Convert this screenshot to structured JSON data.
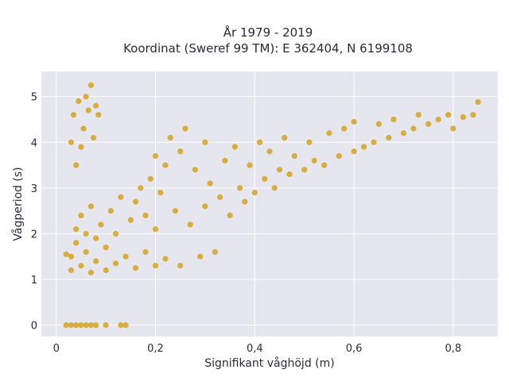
{
  "chart_data": {
    "type": "scatter",
    "title_lines": [
      "År 1979 - 2019",
      "Koordinat (Sweref 99 TM): E 362404, N 6199108"
    ],
    "xlabel": "Signifikant våghöjd (m)",
    "ylabel": "Vågperiod (s)",
    "xlim": [
      -0.03,
      0.89
    ],
    "ylim": [
      -0.25,
      5.55
    ],
    "x_ticks": [
      0,
      0.2,
      0.4,
      0.6,
      0.8
    ],
    "x_tick_labels": [
      "0",
      "0,2",
      "0,4",
      "0,6",
      "0,8"
    ],
    "y_ticks": [
      0,
      1,
      2,
      3,
      4,
      5
    ],
    "y_tick_labels": [
      "0",
      "1",
      "2",
      "3",
      "4",
      "5"
    ],
    "grid": true,
    "colors": {
      "point": "#d4a21f",
      "plot_bg": "#e6e6ef",
      "grid": "#ffffff"
    },
    "points": [
      [
        0.02,
        1.55
      ],
      [
        0.03,
        1.2
      ],
      [
        0.03,
        1.5
      ],
      [
        0.04,
        1.8
      ],
      [
        0.04,
        2.1
      ],
      [
        0.05,
        1.3
      ],
      [
        0.05,
        2.4
      ],
      [
        0.06,
        1.6
      ],
      [
        0.06,
        2.0
      ],
      [
        0.07,
        1.15
      ],
      [
        0.07,
        2.6
      ],
      [
        0.08,
        1.4
      ],
      [
        0.08,
        1.9
      ],
      [
        0.09,
        2.2
      ],
      [
        0.1,
        1.2
      ],
      [
        0.1,
        1.7
      ],
      [
        0.11,
        2.5
      ],
      [
        0.12,
        1.35
      ],
      [
        0.12,
        2.0
      ],
      [
        0.13,
        2.8
      ],
      [
        0.14,
        1.5
      ],
      [
        0.15,
        2.3
      ],
      [
        0.16,
        1.25
      ],
      [
        0.16,
        2.7
      ],
      [
        0.17,
        3.0
      ],
      [
        0.18,
        1.6
      ],
      [
        0.18,
        2.4
      ],
      [
        0.19,
        3.2
      ],
      [
        0.2,
        1.3
      ],
      [
        0.2,
        2.1
      ],
      [
        0.2,
        3.7
      ],
      [
        0.21,
        2.9
      ],
      [
        0.22,
        1.45
      ],
      [
        0.22,
        3.5
      ],
      [
        0.23,
        4.1
      ],
      [
        0.24,
        2.5
      ],
      [
        0.25,
        1.3
      ],
      [
        0.25,
        3.8
      ],
      [
        0.26,
        4.3
      ],
      [
        0.27,
        2.2
      ],
      [
        0.28,
        3.4
      ],
      [
        0.29,
        1.5
      ],
      [
        0.3,
        2.6
      ],
      [
        0.3,
        4.0
      ],
      [
        0.31,
        3.1
      ],
      [
        0.32,
        1.6
      ],
      [
        0.33,
        2.8
      ],
      [
        0.34,
        3.6
      ],
      [
        0.35,
        2.4
      ],
      [
        0.36,
        3.9
      ],
      [
        0.37,
        3.0
      ],
      [
        0.38,
        2.7
      ],
      [
        0.39,
        3.5
      ],
      [
        0.4,
        2.9
      ],
      [
        0.41,
        4.0
      ],
      [
        0.42,
        3.2
      ],
      [
        0.43,
        3.8
      ],
      [
        0.44,
        3.0
      ],
      [
        0.45,
        3.4
      ],
      [
        0.46,
        4.1
      ],
      [
        0.47,
        3.3
      ],
      [
        0.48,
        3.7
      ],
      [
        0.5,
        3.4
      ],
      [
        0.51,
        4.0
      ],
      [
        0.52,
        3.6
      ],
      [
        0.54,
        3.5
      ],
      [
        0.55,
        4.2
      ],
      [
        0.57,
        3.7
      ],
      [
        0.58,
        4.3
      ],
      [
        0.6,
        3.8
      ],
      [
        0.6,
        4.45
      ],
      [
        0.62,
        3.9
      ],
      [
        0.64,
        4.0
      ],
      [
        0.65,
        4.4
      ],
      [
        0.67,
        4.1
      ],
      [
        0.68,
        4.5
      ],
      [
        0.7,
        4.2
      ],
      [
        0.72,
        4.3
      ],
      [
        0.73,
        4.6
      ],
      [
        0.75,
        4.4
      ],
      [
        0.77,
        4.5
      ],
      [
        0.79,
        4.6
      ],
      [
        0.8,
        4.3
      ],
      [
        0.82,
        4.55
      ],
      [
        0.84,
        4.6
      ],
      [
        0.85,
        4.88
      ],
      [
        0.03,
        4.0
      ],
      [
        0.035,
        4.6
      ],
      [
        0.04,
        3.5
      ],
      [
        0.045,
        4.9
      ],
      [
        0.05,
        3.9
      ],
      [
        0.055,
        4.3
      ],
      [
        0.06,
        5.0
      ],
      [
        0.065,
        4.7
      ],
      [
        0.07,
        5.25
      ],
      [
        0.075,
        4.1
      ],
      [
        0.08,
        4.8
      ],
      [
        0.085,
        4.6
      ],
      [
        0.02,
        0.0
      ],
      [
        0.03,
        0.0
      ],
      [
        0.04,
        0.0
      ],
      [
        0.05,
        0.0
      ],
      [
        0.06,
        0.0
      ],
      [
        0.07,
        0.0
      ],
      [
        0.08,
        0.0
      ],
      [
        0.1,
        0.0
      ],
      [
        0.13,
        0.0
      ],
      [
        0.14,
        0.0
      ]
    ]
  }
}
